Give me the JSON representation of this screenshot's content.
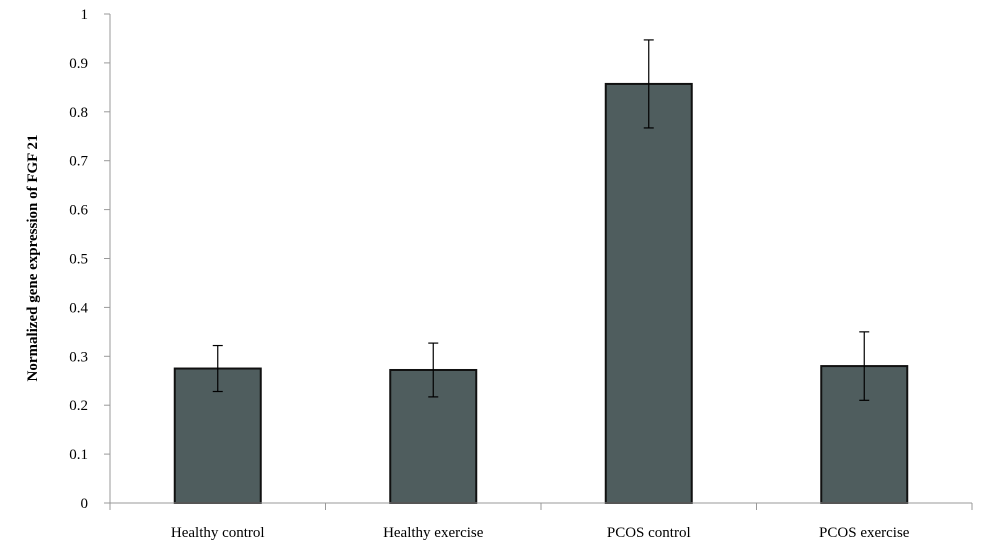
{
  "chart_data": {
    "type": "bar",
    "title": "",
    "xlabel": "",
    "ylabel": "Normalized gene expression of FGF 21",
    "categories": [
      "Healthy control",
      "Healthy exercise",
      "PCOS control",
      "PCOS exercise"
    ],
    "values": [
      0.275,
      0.272,
      0.857,
      0.28
    ],
    "error_low": [
      0.228,
      0.217,
      0.767,
      0.21
    ],
    "error_high": [
      0.322,
      0.327,
      0.947,
      0.35
    ],
    "ylim": [
      0,
      1
    ],
    "yticks": [
      0,
      0.1,
      0.2,
      0.3,
      0.4,
      0.5,
      0.6,
      0.7,
      0.8,
      0.9,
      1
    ],
    "ytick_labels": [
      "0",
      "0.1",
      "0.2",
      "0.3",
      "0.4",
      "0.5",
      "0.6",
      "0.7",
      "0.8",
      "0.9",
      "1"
    ],
    "grid": false,
    "legend": "none",
    "bar_color": "#4f5d5e",
    "bar_edge_color": "#111111",
    "axis_color": "#999999"
  }
}
